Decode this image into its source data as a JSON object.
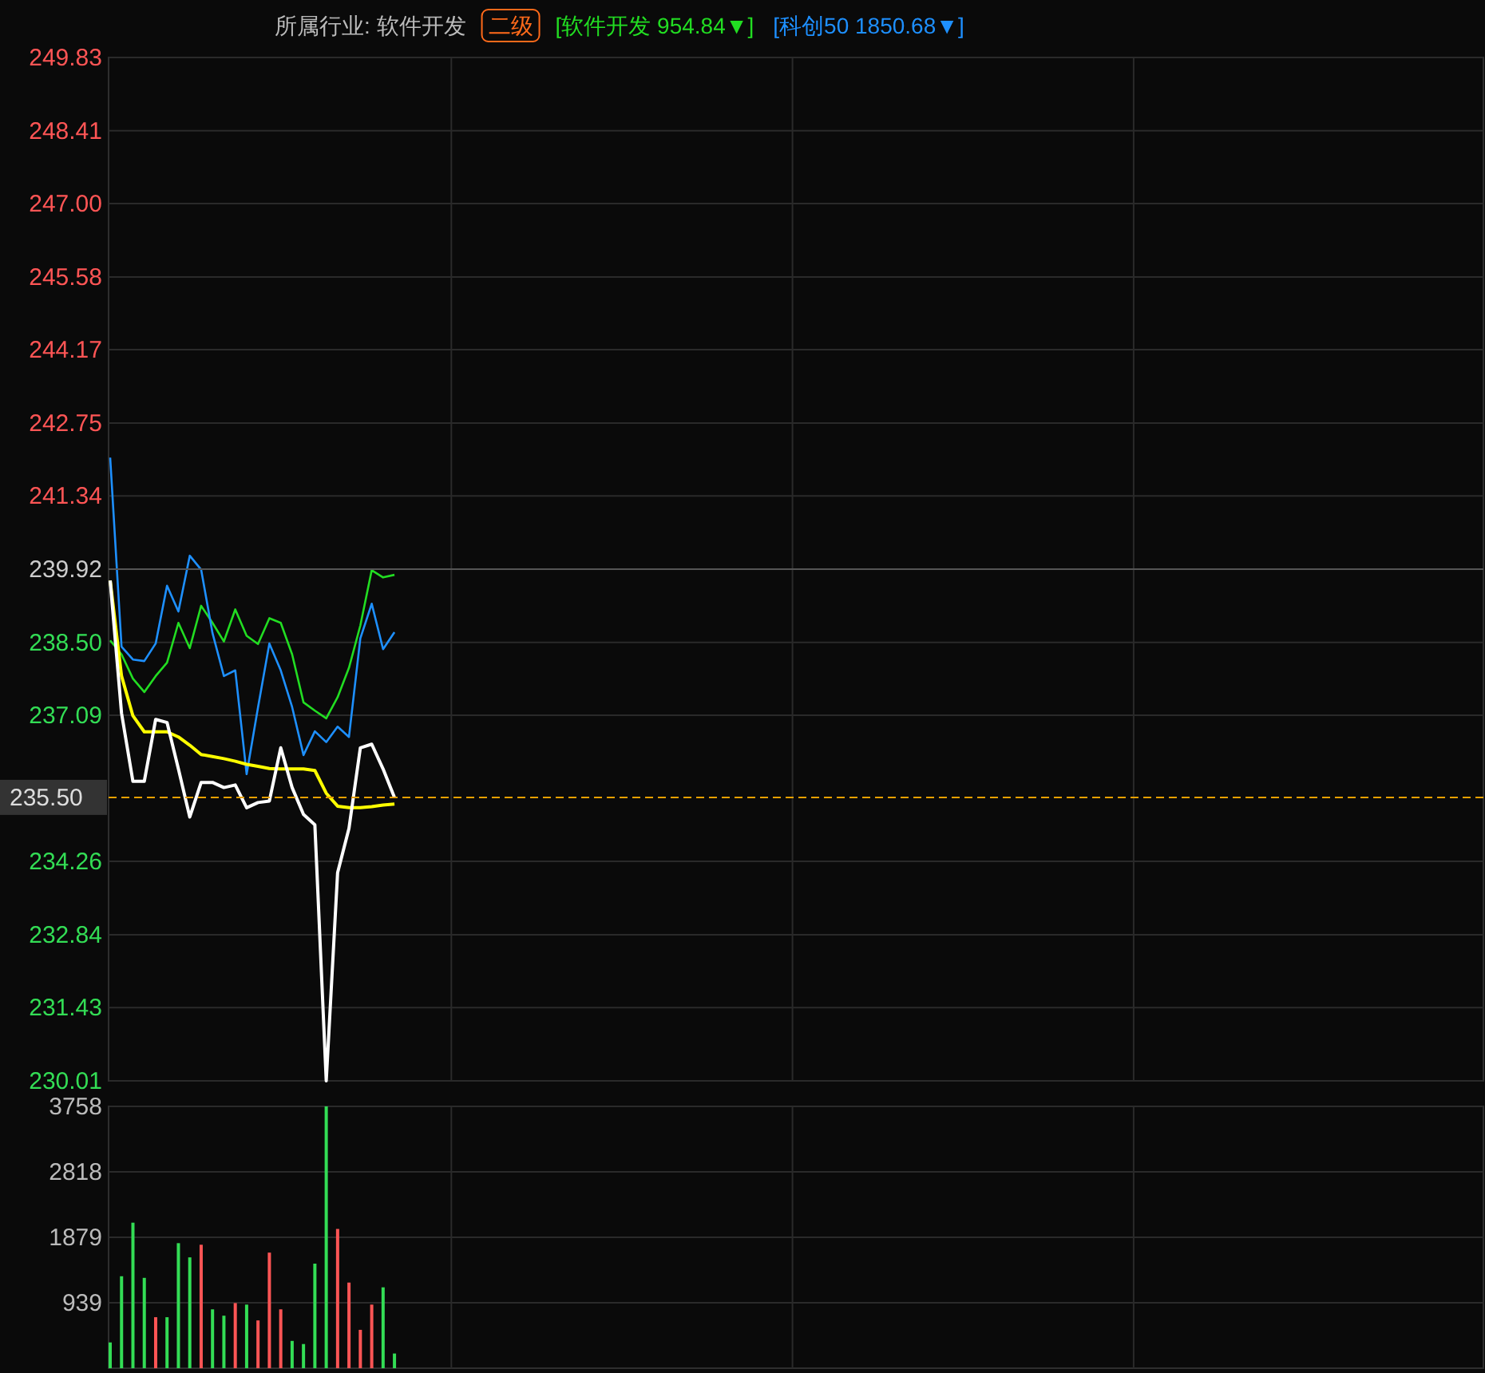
{
  "chart_data": [
    {
      "type": "line",
      "annotations": [
        "所属行业: 软件开发",
        "二级"
      ],
      "categories": [
        null,
        null,
        null,
        null,
        null,
        null,
        null,
        null,
        null,
        null,
        null,
        null,
        null,
        null,
        null,
        null,
        null,
        null,
        null,
        null,
        null,
        null,
        null,
        null,
        null,
        null,
        null,
        null,
        null,
        null,
        null,
        null,
        null,
        null,
        null,
        null,
        null,
        null,
        null,
        null,
        null,
        null,
        null,
        null,
        null,
        null,
        null,
        null,
        null,
        null,
        null,
        null,
        null,
        null,
        null,
        null,
        null,
        null,
        null,
        null,
        null,
        null,
        null,
        null,
        null,
        null,
        null,
        null,
        null,
        null,
        null,
        null,
        null,
        null,
        null,
        null,
        null,
        null,
        null,
        null,
        null,
        null,
        null,
        null,
        null,
        null,
        null,
        null,
        null,
        null,
        null,
        null,
        null,
        null,
        null,
        null,
        null,
        null,
        null,
        null,
        null,
        null,
        null,
        null,
        null,
        null,
        null,
        null,
        null,
        null,
        null,
        null,
        null,
        null,
        null,
        null,
        null,
        null,
        null,
        null,
        null
      ],
      "series": [
        {
          "name": "[软件开发 954.84▼]",
          "color": "#22dd22",
          "values": [
            238.54,
            238.27,
            237.8,
            237.54,
            237.85,
            238.11,
            238.88,
            238.39,
            239.21,
            238.88,
            238.52,
            239.14,
            238.63,
            238.47,
            238.97,
            238.88,
            238.27,
            237.34,
            237.18,
            237.03,
            237.44,
            238.01,
            238.83,
            239.9,
            239.76,
            239.81,
            null,
            null,
            null,
            null,
            null,
            null,
            null,
            null,
            null,
            null,
            null,
            null,
            null,
            null,
            null,
            null,
            null,
            null,
            null,
            null,
            null,
            null,
            null,
            null,
            null,
            null,
            null,
            null,
            null,
            null,
            null,
            null,
            null,
            null,
            null,
            null,
            null,
            null,
            null,
            null,
            null,
            null,
            null,
            null,
            null,
            null,
            null,
            null,
            null,
            null,
            null,
            null,
            null,
            null,
            null,
            null,
            null,
            null,
            null,
            null,
            null,
            null,
            null,
            null,
            null,
            null,
            null,
            null,
            null,
            null,
            null,
            null,
            null,
            null,
            null,
            null,
            null,
            null,
            null,
            null,
            null,
            null,
            null,
            null,
            null,
            null,
            null,
            null,
            null,
            null,
            null,
            null,
            null,
            null,
            null
          ]
        },
        {
          "name": "[科创50 1850.68▼]",
          "color": "#1e90ff",
          "values": [
            242.08,
            238.42,
            238.17,
            238.14,
            238.48,
            239.6,
            239.1,
            240.18,
            239.91,
            238.68,
            237.85,
            237.96,
            235.95,
            237.24,
            238.48,
            237.96,
            237.25,
            236.32,
            236.78,
            236.57,
            236.87,
            236.67,
            238.58,
            239.25,
            238.37,
            238.7,
            null,
            null,
            null,
            null,
            null,
            null,
            null,
            null,
            null,
            null,
            null,
            null,
            null,
            null,
            null,
            null,
            null,
            null,
            null,
            null,
            null,
            null,
            null,
            null,
            null,
            null,
            null,
            null,
            null,
            null,
            null,
            null,
            null,
            null,
            null,
            null,
            null,
            null,
            null,
            null,
            null,
            null,
            null,
            null,
            null,
            null,
            null,
            null,
            null,
            null,
            null,
            null,
            null,
            null,
            null,
            null,
            null,
            null,
            null,
            null,
            null,
            null,
            null,
            null,
            null,
            null,
            null,
            null,
            null,
            null,
            null,
            null,
            null,
            null,
            null,
            null,
            null,
            null,
            null,
            null,
            null,
            null,
            null,
            null,
            null,
            null,
            null,
            null,
            null,
            null,
            null,
            null,
            null,
            null,
            null
          ]
        },
        {
          "color": "#ffff00",
          "values": [
            239.7,
            237.85,
            237.08,
            236.77,
            236.77,
            236.77,
            236.67,
            236.51,
            236.33,
            236.29,
            236.25,
            236.2,
            236.14,
            236.1,
            236.06,
            236.05,
            236.05,
            236.05,
            236.02,
            235.58,
            235.33,
            235.3,
            235.3,
            235.32,
            235.35,
            235.37,
            null,
            null,
            null,
            null,
            null,
            null,
            null,
            null,
            null,
            null,
            null,
            null,
            null,
            null,
            null,
            null,
            null,
            null,
            null,
            null,
            null,
            null,
            null,
            null,
            null,
            null,
            null,
            null,
            null,
            null,
            null,
            null,
            null,
            null,
            null,
            null,
            null,
            null,
            null,
            null,
            null,
            null,
            null,
            null,
            null,
            null,
            null,
            null,
            null,
            null,
            null,
            null,
            null,
            null,
            null,
            null,
            null,
            null,
            null,
            null,
            null,
            null,
            null,
            null,
            null,
            null,
            null,
            null,
            null,
            null,
            null,
            null,
            null,
            null,
            null,
            null,
            null,
            null,
            null,
            null,
            null,
            null,
            null,
            null,
            null,
            null,
            null,
            null,
            null,
            null,
            null,
            null,
            null,
            null,
            null
          ]
        },
        {
          "color": "#ffffff",
          "values": [
            239.7,
            237.13,
            235.81,
            235.81,
            237.01,
            236.95,
            236.05,
            235.12,
            235.79,
            235.79,
            235.69,
            235.74,
            235.3,
            235.4,
            235.43,
            236.46,
            235.69,
            235.17,
            234.97,
            230.01,
            234.04,
            234.9,
            236.46,
            236.53,
            236.05,
            235.5,
            null,
            null,
            null,
            null,
            null,
            null,
            null,
            null,
            null,
            null,
            null,
            null,
            null,
            null,
            null,
            null,
            null,
            null,
            null,
            null,
            null,
            null,
            null,
            null,
            null,
            null,
            null,
            null,
            null,
            null,
            null,
            null,
            null,
            null,
            null,
            null,
            null,
            null,
            null,
            null,
            null,
            null,
            null,
            null,
            null,
            null,
            null,
            null,
            null,
            null,
            null,
            null,
            null,
            null,
            null,
            null,
            null,
            null,
            null,
            null,
            null,
            null,
            null,
            null,
            null,
            null,
            null,
            null,
            null,
            null,
            null,
            null,
            null,
            null,
            null,
            null,
            null,
            null,
            null,
            null,
            null,
            null,
            null,
            null,
            null,
            null,
            null,
            null,
            null,
            null,
            null,
            null,
            null,
            null,
            null
          ]
        }
      ],
      "ylim": [
        230.01,
        249.83
      ],
      "yticks": [
        249.83,
        248.41,
        {
          "value": 247.0,
          "label": "247.00"
        },
        245.58,
        244.17,
        242.75,
        241.34,
        239.92,
        {
          "value": 238.5,
          "label": "238.50"
        },
        237.09,
        234.26,
        232.84,
        231.43,
        230.01
      ],
      "ref_lines": [
        {
          "axis": "y",
          "value": 239.92,
          "color": "#555555"
        },
        {
          "axis": "y",
          "value": 235.5,
          "label": "235.50",
          "color": "#e8a000",
          "line_style": "dashed"
        }
      ],
      "grid": true,
      "legend": "top"
    },
    {
      "type": "bar",
      "categories": [
        null,
        null,
        null,
        null,
        null,
        null,
        null,
        null,
        null,
        null,
        null,
        null,
        null,
        null,
        null,
        null,
        null,
        null,
        null,
        null,
        null,
        null,
        null,
        null,
        null,
        null,
        null,
        null,
        null,
        null,
        null,
        null,
        null,
        null,
        null,
        null,
        null,
        null,
        null,
        null,
        null,
        null,
        null,
        null,
        null,
        null,
        null,
        null,
        null,
        null,
        null,
        null,
        null,
        null,
        null,
        null,
        null,
        null,
        null,
        null,
        null,
        null,
        null,
        null,
        null,
        null,
        null,
        null,
        null,
        null,
        null,
        null,
        null,
        null,
        null,
        null,
        null,
        null,
        null,
        null,
        null,
        null,
        null,
        null,
        null,
        null,
        null,
        null,
        null,
        null,
        null,
        null,
        null,
        null,
        null,
        null,
        null,
        null,
        null,
        null,
        null,
        null,
        null,
        null,
        null,
        null,
        null,
        null,
        null,
        null,
        null,
        null,
        null,
        null,
        null,
        null,
        null,
        null,
        null,
        null,
        null
      ],
      "values": [
        370,
        1320,
        2089,
        1297,
        732,
        732,
        1795,
        1591,
        1772,
        845,
        754,
        935,
        913,
        686,
        1659,
        845,
        392,
        347,
        1501,
        3758,
        1999,
        1229,
        551,
        913,
        1161,
        211,
        null,
        null,
        null,
        null,
        null,
        null,
        null,
        null,
        null,
        null,
        null,
        null,
        null,
        null,
        null,
        null,
        null,
        null,
        null,
        null,
        null,
        null,
        null,
        null,
        null,
        null,
        null,
        null,
        null,
        null,
        null,
        null,
        null,
        null,
        null,
        null,
        null,
        null,
        null,
        null,
        null,
        null,
        null,
        null,
        null,
        null,
        null,
        null,
        null,
        null,
        null,
        null,
        null,
        null,
        null,
        null,
        null,
        null,
        null,
        null,
        null,
        null,
        null,
        null,
        null,
        null,
        null,
        null,
        null,
        null,
        null,
        null,
        null,
        null,
        null,
        null,
        null,
        null,
        null,
        null,
        null,
        null,
        null,
        null,
        null,
        null,
        null,
        null,
        null,
        null,
        null,
        null,
        null,
        null,
        null
      ],
      "colors": [
        "#33dd55",
        "#33dd55",
        "#33dd55",
        "#33dd55",
        "#ff5555",
        "#33dd55",
        "#33dd55",
        "#33dd55",
        "#ff5555",
        "#33dd55",
        "#33dd55",
        "#ff5555",
        "#33dd55",
        "#ff5555",
        "#ff5555",
        "#ff5555",
        "#33dd55",
        "#33dd55",
        "#33dd55",
        "#33dd55",
        "#ff5555",
        "#ff5555",
        "#ff5555",
        "#ff5555",
        "#33dd55",
        "#33dd55",
        null,
        null,
        null,
        null,
        null,
        null,
        null,
        null,
        null,
        null,
        null,
        null,
        null,
        null,
        null,
        null,
        null,
        null,
        null,
        null,
        null,
        null,
        null,
        null,
        null,
        null,
        null,
        null,
        null,
        null,
        null,
        null,
        null,
        null,
        null,
        null,
        null,
        null,
        null,
        null,
        null,
        null,
        null,
        null,
        null,
        null,
        null,
        null,
        null,
        null,
        null,
        null,
        null,
        null,
        null,
        null,
        null,
        null,
        null,
        null,
        null,
        null,
        null,
        null,
        null,
        null,
        null,
        null,
        null,
        null,
        null,
        null,
        null,
        null,
        null,
        null,
        null,
        null,
        null,
        null,
        null,
        null,
        null,
        null,
        null,
        null,
        null,
        null,
        null,
        null,
        null,
        null,
        null,
        null,
        null
      ],
      "ylim": [
        0,
        3758
      ],
      "yticks": [
        939,
        1879,
        2818,
        3758
      ],
      "grid": true
    }
  ]
}
